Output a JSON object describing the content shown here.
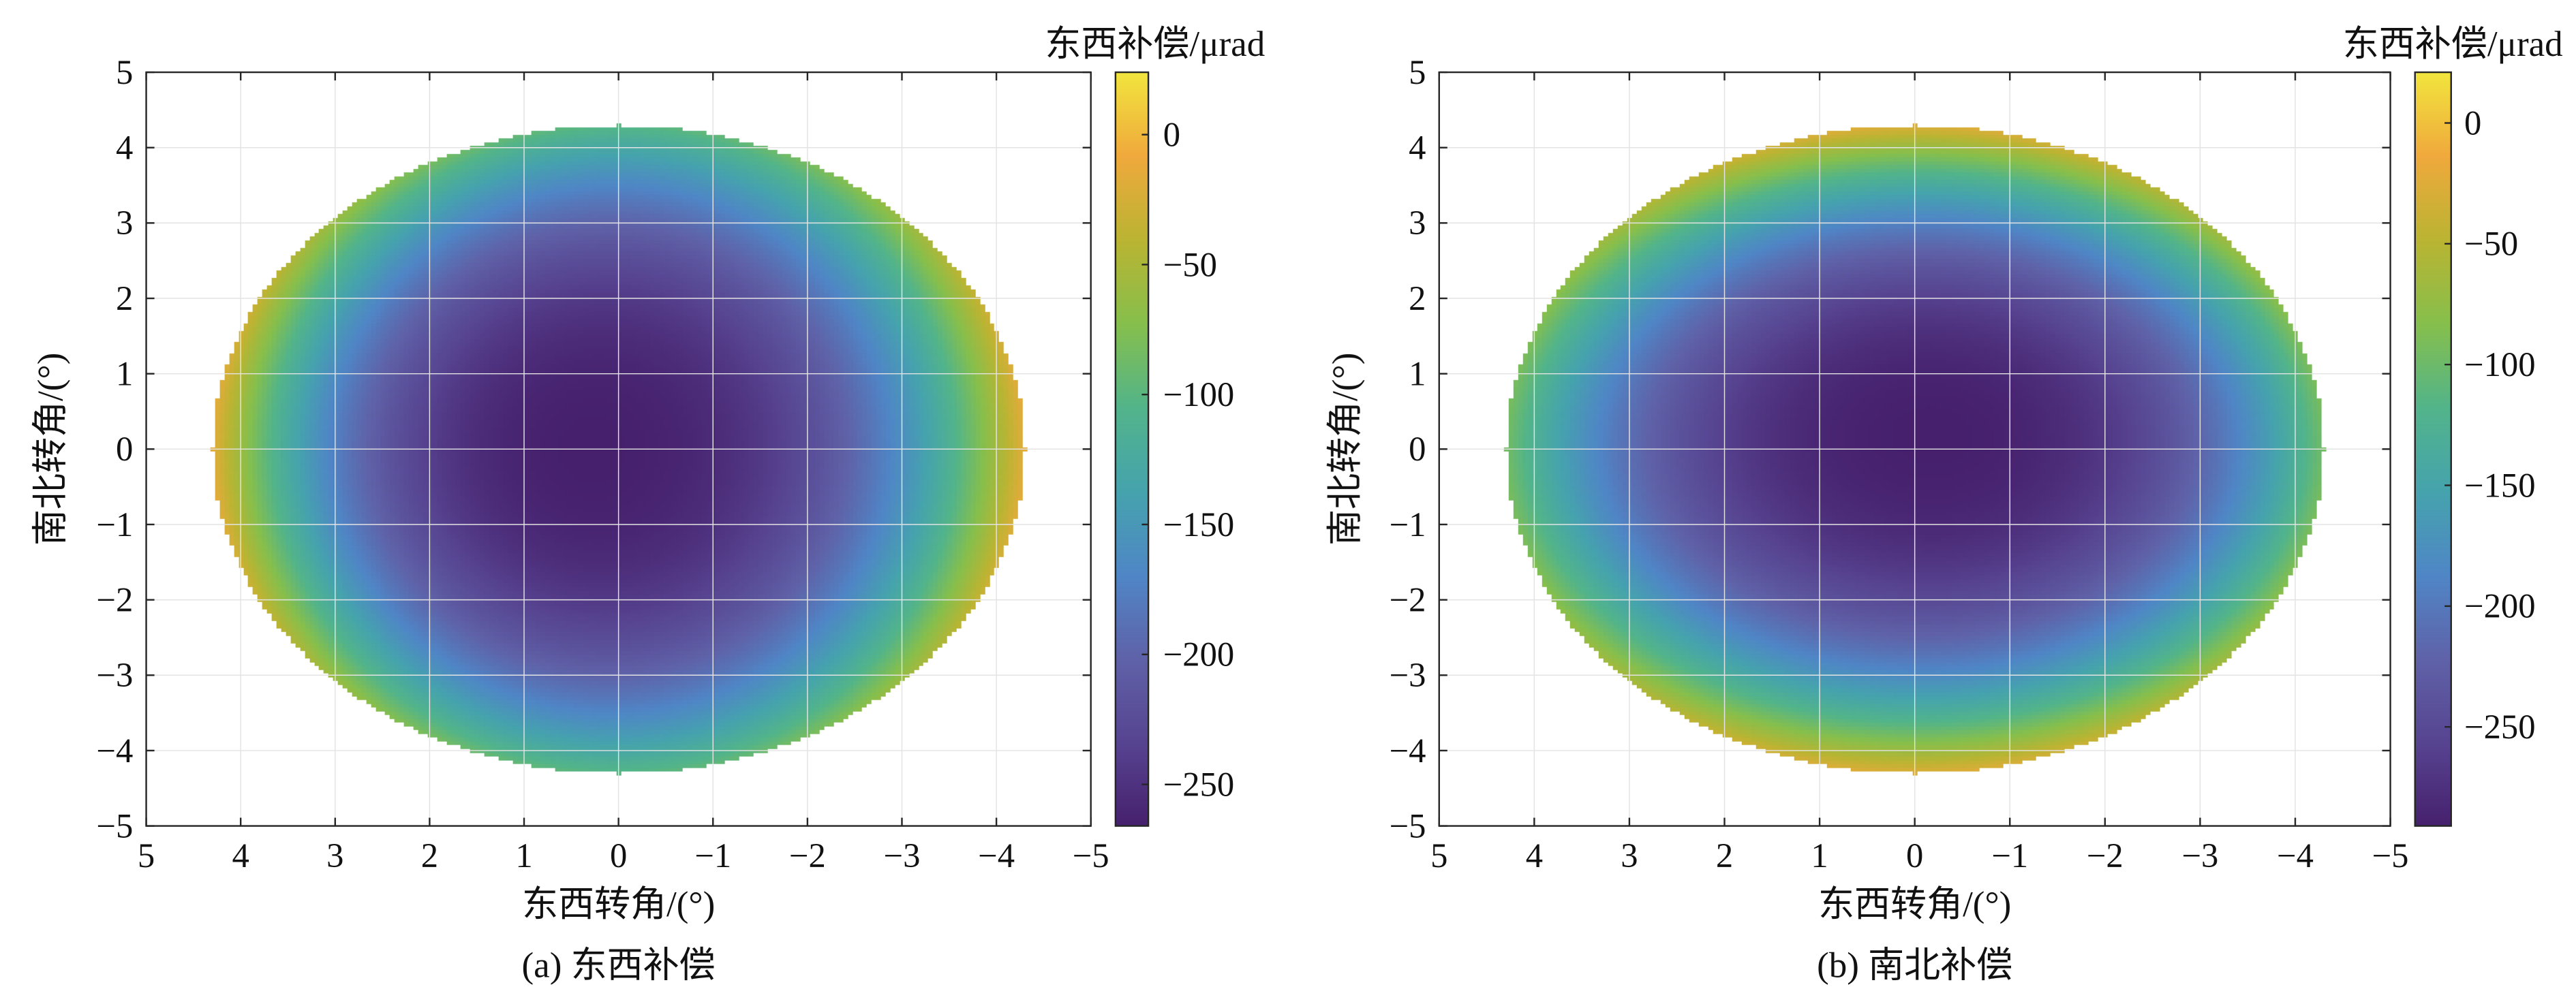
{
  "colormap": [
    "#46206d",
    "#574491",
    "#5f62a8",
    "#4f86c6",
    "#45a3ad",
    "#52b48a",
    "#86bf4c",
    "#bab432",
    "#f0a93c",
    "#f1e53d"
  ],
  "chart_data": [
    {
      "type": "heatmap",
      "caption": "(a) 东西补偿",
      "xlabel": "东西转角/(°)",
      "ylabel": "南北转角/(°)",
      "colorbar_title": "东西补偿/μrad",
      "xlim": [
        5,
        -5
      ],
      "ylim": [
        -5,
        5
      ],
      "xticks": [
        5,
        4,
        3,
        2,
        1,
        0,
        -1,
        -2,
        -3,
        -4,
        -5
      ],
      "yticks": [
        5,
        4,
        3,
        2,
        1,
        0,
        -1,
        -2,
        -3,
        -4,
        -5
      ],
      "xtick_labels": [
        "5",
        "4",
        "3",
        "2",
        "1",
        "0",
        "−1",
        "−2",
        "−3",
        "−4",
        "−5"
      ],
      "ytick_labels": [
        "5",
        "4",
        "3",
        "2",
        "1",
        "0",
        "−1",
        "−2",
        "−3",
        "−4",
        "−5"
      ],
      "grid": true,
      "domain_radius_deg": 4.3,
      "clim": [
        -266,
        24
      ],
      "colorbar_ticks": [
        0,
        -50,
        -100,
        -150,
        -200,
        -250
      ],
      "colorbar_tick_labels": [
        "0",
        "−50",
        "−100",
        "−150",
        "−200",
        "−250"
      ],
      "field": {
        "min_value": -266,
        "min_at": [
          0.3,
          0.0
        ],
        "edge_value_ew": -15,
        "edge_value_ns": -100
      }
    },
    {
      "type": "heatmap",
      "caption": "(b) 南北补偿",
      "xlabel": "东西转角/(°)",
      "ylabel": "南北转角/(°)",
      "colorbar_title": "东西补偿/μrad",
      "xlim": [
        5,
        -5
      ],
      "ylim": [
        -5,
        5
      ],
      "xticks": [
        5,
        4,
        3,
        2,
        1,
        0,
        -1,
        -2,
        -3,
        -4,
        -5
      ],
      "yticks": [
        5,
        4,
        3,
        2,
        1,
        0,
        -1,
        -2,
        -3,
        -4,
        -5
      ],
      "xtick_labels": [
        "5",
        "4",
        "3",
        "2",
        "1",
        "0",
        "−1",
        "−2",
        "−3",
        "−4",
        "−5"
      ],
      "ytick_labels": [
        "5",
        "4",
        "3",
        "2",
        "1",
        "0",
        "−1",
        "−2",
        "−3",
        "−4",
        "−5"
      ],
      "grid": true,
      "domain_radius_deg": 4.3,
      "clim": [
        -291,
        21
      ],
      "colorbar_ticks": [
        0,
        -50,
        -100,
        -150,
        -200,
        -250
      ],
      "colorbar_tick_labels": [
        "0",
        "−50",
        "−100",
        "−150",
        "−200",
        "−250"
      ],
      "field": {
        "min_value": -291,
        "min_at": [
          -0.2,
          0.2
        ],
        "edge_value_ew": -95,
        "edge_value_ns": -25
      }
    }
  ]
}
